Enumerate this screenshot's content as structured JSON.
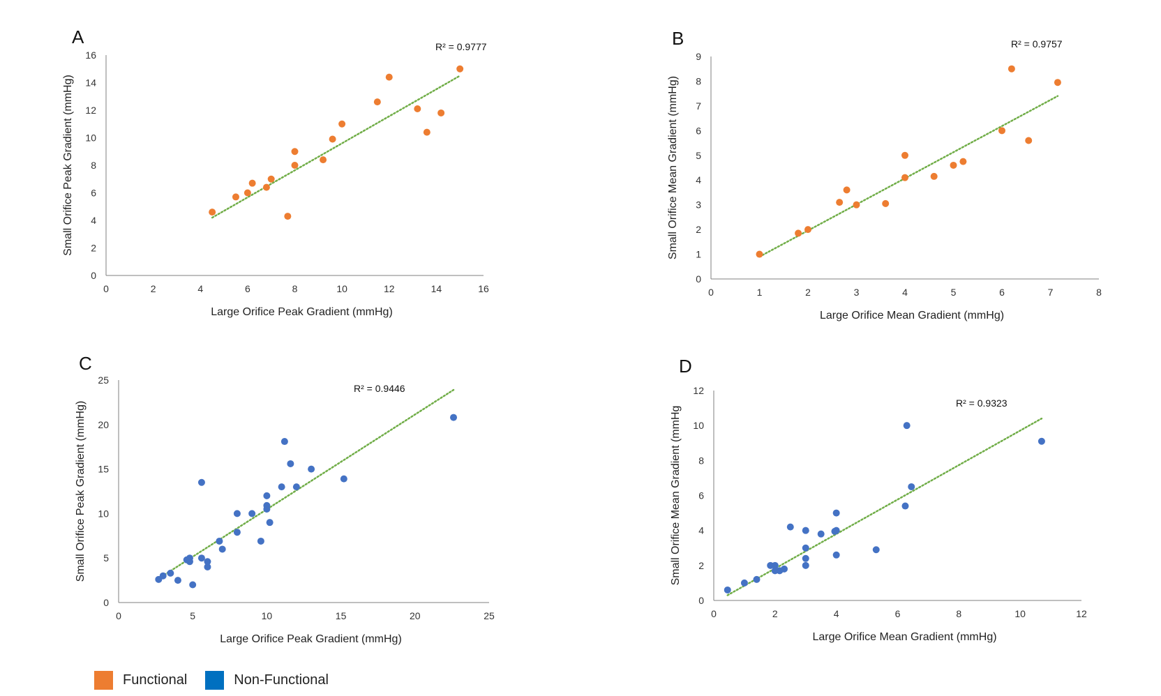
{
  "colors": {
    "functional": "#ED7D31",
    "non_functional": "#4472C4",
    "trend": "#70AD47",
    "axis": "#7f7f7f"
  },
  "legend": [
    {
      "label": "Functional",
      "color": "#ED7D31"
    },
    {
      "label": "Non-Functional",
      "color": "#0070C0"
    }
  ],
  "chart_data": [
    {
      "panel": "A",
      "type": "scatter",
      "xlabel": "Large Orifice Peak Gradient (mmHg)",
      "ylabel": "Small Orifice Peak Gradient (mmHg)",
      "xlim": [
        0,
        16
      ],
      "ylim": [
        0,
        16
      ],
      "xticks": [
        0,
        2,
        4,
        6,
        8,
        10,
        12,
        14,
        16
      ],
      "yticks": [
        0,
        2,
        4,
        6,
        8,
        10,
        12,
        14,
        16
      ],
      "r2": "R² = 0.9777",
      "trendline": {
        "x": [
          4.5,
          15
        ],
        "y": [
          4.2,
          14.5
        ]
      },
      "series": [
        {
          "group": "functional",
          "points": [
            [
              4.5,
              4.6
            ],
            [
              5.5,
              5.7
            ],
            [
              6.0,
              6.0
            ],
            [
              6.2,
              6.7
            ],
            [
              6.8,
              6.4
            ],
            [
              7.0,
              7.0
            ],
            [
              7.7,
              4.3
            ],
            [
              8.0,
              8.0
            ],
            [
              8.0,
              9.0
            ],
            [
              9.2,
              8.4
            ],
            [
              9.6,
              9.9
            ],
            [
              10.0,
              11.0
            ],
            [
              11.5,
              12.6
            ],
            [
              12.0,
              14.4
            ],
            [
              13.2,
              12.1
            ],
            [
              13.6,
              10.4
            ],
            [
              14.2,
              11.8
            ],
            [
              15.0,
              15.0
            ]
          ]
        }
      ]
    },
    {
      "panel": "B",
      "type": "scatter",
      "xlabel": "Large Orifice Mean Gradient (mmHg)",
      "ylabel": "Small Orifice  Mean Gradient (mmHg)",
      "xlim": [
        0,
        8
      ],
      "ylim": [
        0,
        9
      ],
      "xticks": [
        0,
        1,
        2,
        3,
        4,
        5,
        6,
        7,
        8
      ],
      "yticks": [
        0,
        1,
        2,
        3,
        4,
        5,
        6,
        7,
        8,
        9
      ],
      "r2": "R² = 0.9757",
      "trendline": {
        "x": [
          1,
          7.15
        ],
        "y": [
          0.9,
          7.4
        ]
      },
      "series": [
        {
          "group": "functional",
          "points": [
            [
              1.0,
              1.0
            ],
            [
              1.8,
              1.85
            ],
            [
              2.0,
              2.0
            ],
            [
              2.65,
              3.1
            ],
            [
              2.8,
              3.6
            ],
            [
              3.0,
              3.0
            ],
            [
              3.6,
              3.05
            ],
            [
              4.0,
              4.1
            ],
            [
              4.0,
              5.0
            ],
            [
              4.6,
              4.15
            ],
            [
              5.0,
              4.6
            ],
            [
              5.2,
              4.75
            ],
            [
              6.0,
              6.0
            ],
            [
              6.2,
              8.5
            ],
            [
              6.55,
              5.6
            ],
            [
              7.15,
              7.95
            ]
          ]
        }
      ]
    },
    {
      "panel": "C",
      "type": "scatter",
      "xlabel": "Large Orifice Peak Gradient (mmHg)",
      "ylabel": "Small Orifice Peak Gradient (mmHg)",
      "xlim": [
        0,
        25
      ],
      "ylim": [
        0,
        25
      ],
      "xticks": [
        0,
        5,
        10,
        15,
        20,
        25
      ],
      "yticks": [
        0,
        5,
        10,
        15,
        20,
        25
      ],
      "r2": "R² = 0.9446",
      "trendline": {
        "x": [
          2.7,
          22.6
        ],
        "y": [
          2.7,
          23.9
        ]
      },
      "series": [
        {
          "group": "non_functional",
          "points": [
            [
              2.7,
              2.6
            ],
            [
              3.0,
              3.0
            ],
            [
              3.5,
              3.3
            ],
            [
              4.0,
              2.5
            ],
            [
              4.6,
              4.8
            ],
            [
              4.8,
              4.6
            ],
            [
              4.8,
              5.0
            ],
            [
              5.0,
              2.0
            ],
            [
              5.6,
              5.0
            ],
            [
              5.6,
              13.5
            ],
            [
              6.0,
              4.0
            ],
            [
              6.0,
              4.6
            ],
            [
              6.8,
              6.9
            ],
            [
              7.0,
              6.0
            ],
            [
              8.0,
              7.9
            ],
            [
              8.0,
              10.0
            ],
            [
              9.0,
              10.0
            ],
            [
              9.6,
              6.9
            ],
            [
              10.0,
              10.5
            ],
            [
              10.0,
              10.9
            ],
            [
              10.0,
              12.0
            ],
            [
              10.2,
              9.0
            ],
            [
              11.0,
              13.0
            ],
            [
              11.2,
              18.1
            ],
            [
              11.6,
              15.6
            ],
            [
              12.0,
              13.0
            ],
            [
              13.0,
              15.0
            ],
            [
              15.2,
              13.9
            ],
            [
              22.6,
              20.8
            ]
          ]
        }
      ]
    },
    {
      "panel": "D",
      "type": "scatter",
      "xlabel": "Large Orifice Mean Gradient (mmHg)",
      "ylabel": "Small Orifice Mean Gradient (mmHg",
      "xlim": [
        0,
        12
      ],
      "ylim": [
        0,
        12
      ],
      "xticks": [
        0,
        2,
        4,
        6,
        8,
        10,
        12
      ],
      "yticks": [
        0,
        2,
        4,
        6,
        8,
        10,
        12
      ],
      "r2": "R² = 0.9323",
      "trendline": {
        "x": [
          0.45,
          10.7
        ],
        "y": [
          0.3,
          10.4
        ]
      },
      "series": [
        {
          "group": "non_functional",
          "points": [
            [
              0.45,
              0.6
            ],
            [
              1.0,
              1.0
            ],
            [
              1.4,
              1.2
            ],
            [
              1.85,
              2.0
            ],
            [
              2.0,
              1.7
            ],
            [
              2.0,
              2.0
            ],
            [
              2.15,
              1.7
            ],
            [
              2.3,
              1.8
            ],
            [
              2.5,
              4.2
            ],
            [
              3.0,
              2.0
            ],
            [
              3.0,
              2.4
            ],
            [
              3.0,
              3.0
            ],
            [
              3.0,
              4.0
            ],
            [
              3.5,
              3.8
            ],
            [
              4.0,
              2.6
            ],
            [
              3.95,
              3.95
            ],
            [
              4.0,
              4.0
            ],
            [
              4.0,
              5.0
            ],
            [
              5.3,
              2.9
            ],
            [
              6.25,
              5.4
            ],
            [
              6.3,
              10.0
            ],
            [
              6.45,
              6.5
            ],
            [
              10.7,
              9.1
            ]
          ]
        }
      ]
    }
  ]
}
